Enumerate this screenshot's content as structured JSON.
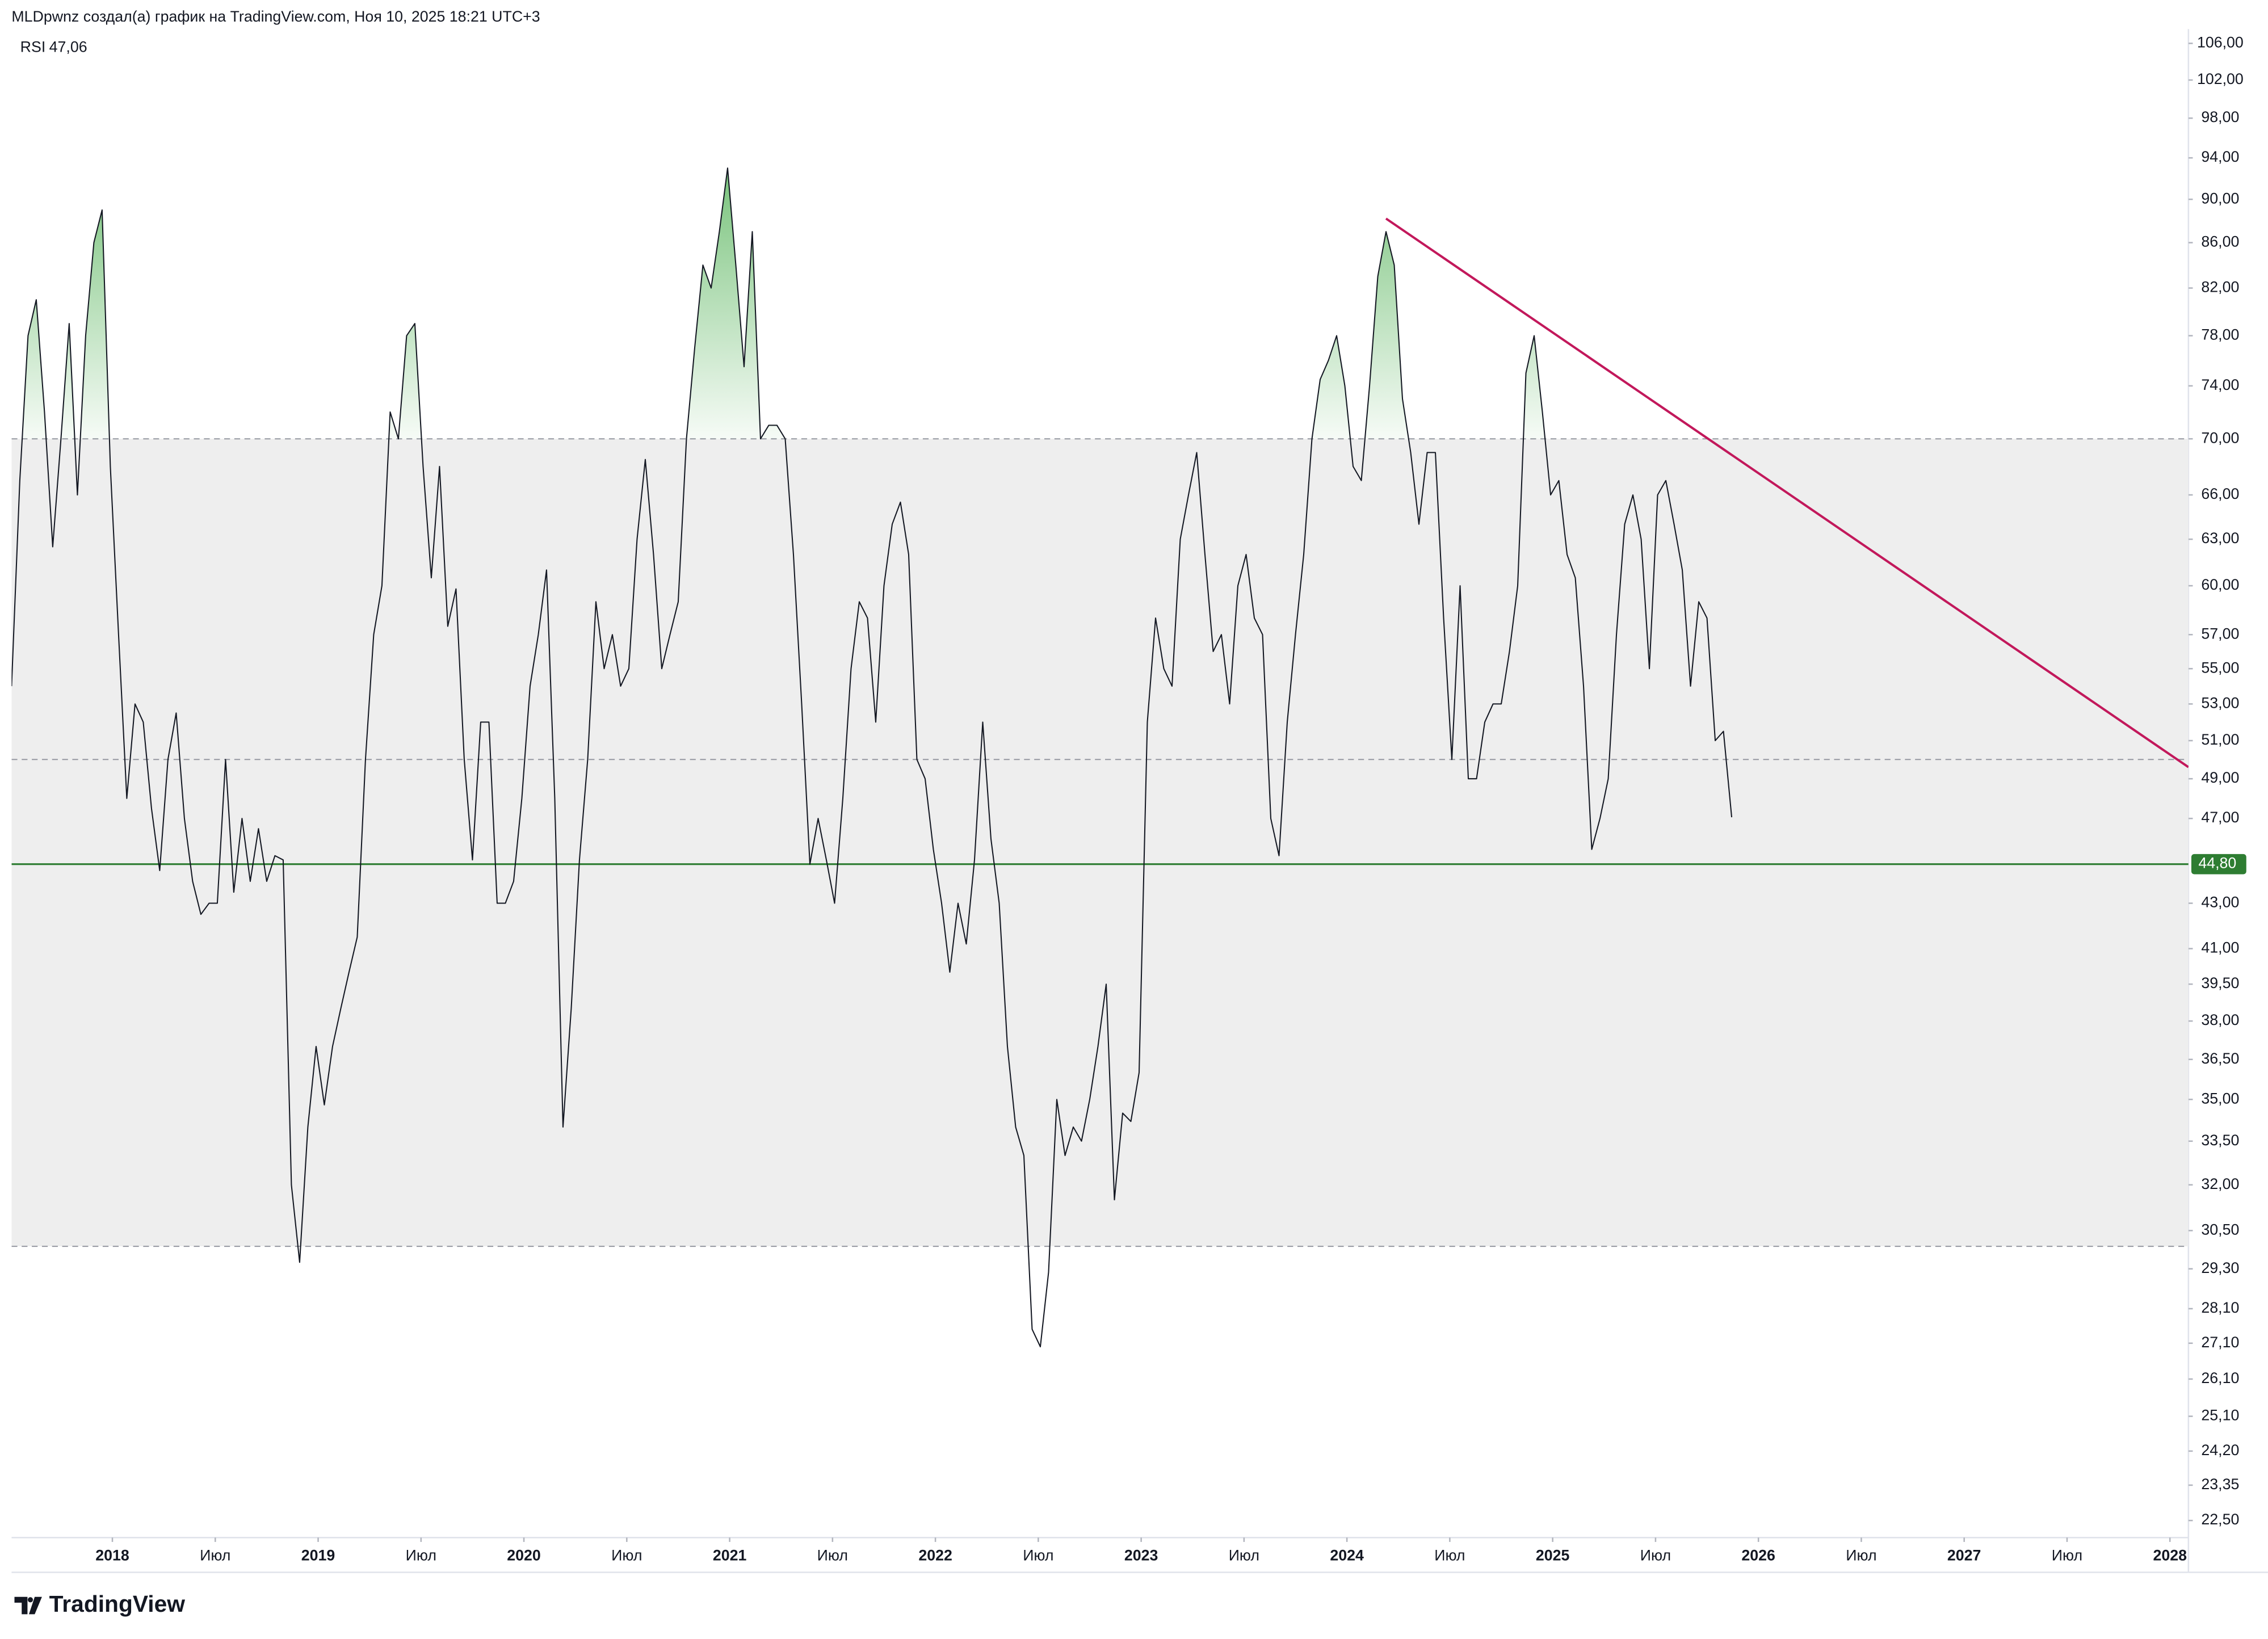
{
  "chart_data": {
    "type": "line",
    "header": "MLDpwnz создал(а) график на TradingView.com, Ноя 10, 2025 18:21 UTC+3",
    "last_value_label": "47,06",
    "brand": "TradingView",
    "log_scale": true,
    "xlim": [
      2017.51,
      2028.09
    ],
    "ylim": [
      22.1,
      107.6
    ],
    "x": [
      2017.51,
      2017.55,
      2017.59,
      2017.63,
      2017.67,
      2017.71,
      2017.75,
      2017.79,
      2017.83,
      2017.87,
      2017.91,
      2017.95,
      2017.99,
      2018.03,
      2018.07,
      2018.11,
      2018.15,
      2018.19,
      2018.23,
      2018.27,
      2018.31,
      2018.35,
      2018.39,
      2018.43,
      2018.47,
      2018.51,
      2018.55,
      2018.59,
      2018.63,
      2018.67,
      2018.71,
      2018.75,
      2018.79,
      2018.83,
      2018.87,
      2018.91,
      2018.95,
      2018.99,
      2019.03,
      2019.07,
      2019.11,
      2019.15,
      2019.19,
      2019.23,
      2019.27,
      2019.31,
      2019.35,
      2019.39,
      2019.43,
      2019.47,
      2019.51,
      2019.55,
      2019.59,
      2019.63,
      2019.67,
      2019.71,
      2019.75,
      2019.79,
      2019.83,
      2019.87,
      2019.91,
      2019.95,
      2019.99,
      2020.03,
      2020.07,
      2020.11,
      2020.15,
      2020.19,
      2020.23,
      2020.27,
      2020.31,
      2020.35,
      2020.39,
      2020.43,
      2020.47,
      2020.51,
      2020.55,
      2020.59,
      2020.63,
      2020.67,
      2020.71,
      2020.75,
      2020.79,
      2020.83,
      2020.87,
      2020.91,
      2020.95,
      2020.99,
      2021.03,
      2021.07,
      2021.11,
      2021.15,
      2021.19,
      2021.23,
      2021.27,
      2021.31,
      2021.35,
      2021.39,
      2021.43,
      2021.47,
      2021.51,
      2021.55,
      2021.59,
      2021.63,
      2021.67,
      2021.71,
      2021.75,
      2021.79,
      2021.83,
      2021.87,
      2021.91,
      2021.95,
      2021.99,
      2022.03,
      2022.07,
      2022.11,
      2022.15,
      2022.19,
      2022.23,
      2022.27,
      2022.31,
      2022.35,
      2022.39,
      2022.43,
      2022.47,
      2022.51,
      2022.55,
      2022.59,
      2022.63,
      2022.67,
      2022.71,
      2022.75,
      2022.79,
      2022.83,
      2022.87,
      2022.91,
      2022.95,
      2022.99,
      2023.03,
      2023.07,
      2023.11,
      2023.15,
      2023.19,
      2023.23,
      2023.27,
      2023.31,
      2023.35,
      2023.39,
      2023.43,
      2023.47,
      2023.51,
      2023.55,
      2023.59,
      2023.63,
      2023.67,
      2023.71,
      2023.75,
      2023.79,
      2023.83,
      2023.87,
      2023.91,
      2023.95,
      2023.99,
      2024.03,
      2024.07,
      2024.11,
      2024.15,
      2024.19,
      2024.23,
      2024.27,
      2024.31,
      2024.35,
      2024.39,
      2024.43,
      2024.47,
      2024.51,
      2024.55,
      2024.59,
      2024.63,
      2024.67,
      2024.71,
      2024.75,
      2024.79,
      2024.83,
      2024.87,
      2024.91,
      2024.95,
      2024.99,
      2025.03,
      2025.07,
      2025.11,
      2025.15,
      2025.19,
      2025.23,
      2025.27,
      2025.31,
      2025.35,
      2025.39,
      2025.43,
      2025.47,
      2025.51,
      2025.55,
      2025.59,
      2025.63,
      2025.67,
      2025.71,
      2025.75,
      2025.79,
      2025.83,
      2025.87
    ],
    "series": [
      {
        "name": "RSI",
        "color": "#131722",
        "values": [
          54,
          67,
          78,
          81,
          72,
          62.5,
          70,
          79,
          66,
          78,
          86,
          89,
          68,
          57,
          48,
          53,
          52,
          47.5,
          44.5,
          50,
          52.5,
          47,
          44,
          42.5,
          43,
          43,
          50,
          43.5,
          47,
          44,
          46.5,
          44,
          45.2,
          45,
          32,
          29.5,
          34,
          37,
          34.8,
          37,
          38.5,
          40,
          41.5,
          50,
          57,
          60,
          72,
          70,
          78,
          79,
          68,
          60.5,
          68,
          57.5,
          59.8,
          50,
          45,
          52,
          52,
          43,
          43,
          44,
          48,
          54,
          57,
          61,
          48,
          34,
          38.5,
          45,
          50,
          59,
          55,
          57,
          54,
          55,
          63,
          68.5,
          62,
          55,
          57,
          59,
          70,
          77,
          84,
          82,
          87,
          93,
          84,
          75.5,
          87,
          70,
          71,
          71,
          70,
          62,
          53,
          44.8,
          47,
          45,
          43,
          48,
          55,
          59,
          58,
          52,
          60,
          64,
          65.5,
          62,
          50,
          49,
          45.5,
          43,
          40,
          43,
          41.2,
          45,
          52,
          46,
          43,
          37,
          34,
          33,
          27.5,
          27,
          29.2,
          35,
          33,
          34,
          33.5,
          35,
          37,
          39.5,
          31.5,
          34.5,
          34.2,
          36,
          52,
          58,
          55,
          54,
          63,
          66,
          69,
          62,
          56,
          57,
          53,
          60,
          62,
          58,
          57,
          47,
          45.2,
          52,
          57,
          62,
          70,
          74.5,
          76,
          78,
          74,
          68,
          67,
          74,
          83,
          87,
          84,
          73,
          69,
          64,
          69,
          69,
          58,
          50,
          60,
          49,
          49,
          52,
          53,
          53,
          56,
          60,
          75,
          78,
          72,
          66,
          67,
          62,
          60.5,
          54,
          45.5,
          47,
          49,
          57,
          64,
          66,
          63,
          55,
          66,
          67,
          64,
          61,
          54,
          59,
          58,
          51,
          51.5,
          47.06
        ]
      }
    ],
    "levels": {
      "upper": 70,
      "middle": 50,
      "lower": 30
    },
    "band_color": "#eeeeee",
    "fill_color": "#4caf50",
    "hline": {
      "value": 44.8,
      "label": "44,80",
      "color": "#2e7d32"
    },
    "trendline": {
      "x": [
        2024.19,
        2028.09
      ],
      "y": [
        88.2,
        49.6
      ],
      "color": "#c2185b"
    },
    "xticks": [
      2018,
      {
        "value": 2018.5,
        "label": "Июл"
      },
      2019,
      {
        "value": 2019.5,
        "label": "Июл"
      },
      2020,
      {
        "value": 2020.5,
        "label": "Июл"
      },
      2021,
      {
        "value": 2021.5,
        "label": "Июл"
      },
      2022,
      {
        "value": 2022.5,
        "label": "Июл"
      },
      2023,
      {
        "value": 2023.5,
        "label": "Июл"
      },
      2024,
      {
        "value": 2024.5,
        "label": "Июл"
      },
      2025,
      {
        "value": 2025.5,
        "label": "Июл"
      },
      2026,
      {
        "value": 2026.5,
        "label": "Июл"
      },
      2027,
      {
        "value": 2027.5,
        "label": "Июл"
      },
      2028
    ],
    "yticks": [
      {
        "value": 106,
        "label": "106,00"
      },
      {
        "value": 102,
        "label": "102,00"
      },
      {
        "value": 98,
        "label": "98,00"
      },
      {
        "value": 94,
        "label": "94,00"
      },
      {
        "value": 90,
        "label": "90,00"
      },
      {
        "value": 86,
        "label": "86,00"
      },
      {
        "value": 82,
        "label": "82,00"
      },
      {
        "value": 78,
        "label": "78,00"
      },
      {
        "value": 74,
        "label": "74,00"
      },
      {
        "value": 70,
        "label": "70,00"
      },
      {
        "value": 66,
        "label": "66,00"
      },
      {
        "value": 63,
        "label": "63,00"
      },
      {
        "value": 60,
        "label": "60,00"
      },
      {
        "value": 57,
        "label": "57,00"
      },
      {
        "value": 55,
        "label": "55,00"
      },
      {
        "value": 53,
        "label": "53,00"
      },
      {
        "value": 51,
        "label": "51,00"
      },
      {
        "value": 49,
        "label": "49,00"
      },
      {
        "value": 47,
        "label": "47,00"
      },
      {
        "value": 43,
        "label": "43,00"
      },
      {
        "value": 41,
        "label": "41,00"
      },
      {
        "value": 39.5,
        "label": "39,50"
      },
      {
        "value": 38,
        "label": "38,00"
      },
      {
        "value": 36.5,
        "label": "36,50"
      },
      {
        "value": 35,
        "label": "35,00"
      },
      {
        "value": 33.5,
        "label": "33,50"
      },
      {
        "value": 32,
        "label": "32,00"
      },
      {
        "value": 30.5,
        "label": "30,50"
      },
      {
        "value": 29.3,
        "label": "29,30"
      },
      {
        "value": 28.1,
        "label": "28,10"
      },
      {
        "value": 27.1,
        "label": "27,10"
      },
      {
        "value": 26.1,
        "label": "26,10"
      },
      {
        "value": 25.1,
        "label": "25,10"
      },
      {
        "value": 24.2,
        "label": "24,20"
      },
      {
        "value": 23.35,
        "label": "23,35"
      },
      {
        "value": 22.5,
        "label": "22,50"
      }
    ]
  }
}
